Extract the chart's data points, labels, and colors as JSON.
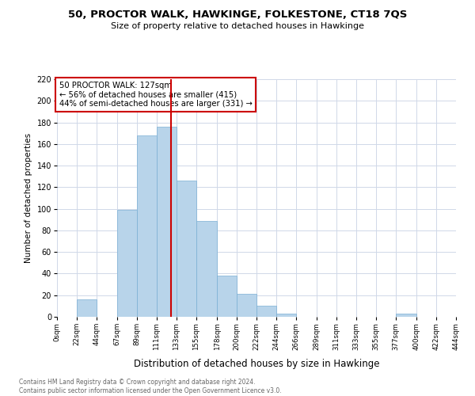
{
  "title": "50, PROCTOR WALK, HAWKINGE, FOLKESTONE, CT18 7QS",
  "subtitle": "Size of property relative to detached houses in Hawkinge",
  "xlabel": "Distribution of detached houses by size in Hawkinge",
  "ylabel": "Number of detached properties",
  "bar_values": [
    0,
    16,
    0,
    99,
    168,
    176,
    126,
    89,
    38,
    21,
    10,
    3,
    0,
    0,
    0,
    0,
    0,
    3
  ],
  "bar_left_edges": [
    0,
    22,
    44,
    67,
    89,
    111,
    133,
    155,
    178,
    200,
    222,
    244,
    266,
    289,
    311,
    333,
    355,
    377,
    400,
    422,
    444
  ],
  "tick_labels": [
    "0sqm",
    "22sqm",
    "44sqm",
    "67sqm",
    "89sqm",
    "111sqm",
    "133sqm",
    "155sqm",
    "178sqm",
    "200sqm",
    "222sqm",
    "244sqm",
    "266sqm",
    "289sqm",
    "311sqm",
    "333sqm",
    "355sqm",
    "377sqm",
    "400sqm",
    "422sqm",
    "444sqm"
  ],
  "bar_color": "#b8d4ea",
  "bar_edge_color": "#7aafd4",
  "vline_x": 127,
  "vline_color": "#cc0000",
  "ylim": [
    0,
    220
  ],
  "yticks": [
    0,
    20,
    40,
    60,
    80,
    100,
    120,
    140,
    160,
    180,
    200,
    220
  ],
  "annotation_title": "50 PROCTOR WALK: 127sqm",
  "annotation_line1": "← 56% of detached houses are smaller (415)",
  "annotation_line2": "44% of semi-detached houses are larger (331) →",
  "footer_line1": "Contains HM Land Registry data © Crown copyright and database right 2024.",
  "footer_line2": "Contains public sector information licensed under the Open Government Licence v3.0.",
  "background_color": "#ffffff",
  "grid_color": "#d0d8e8"
}
